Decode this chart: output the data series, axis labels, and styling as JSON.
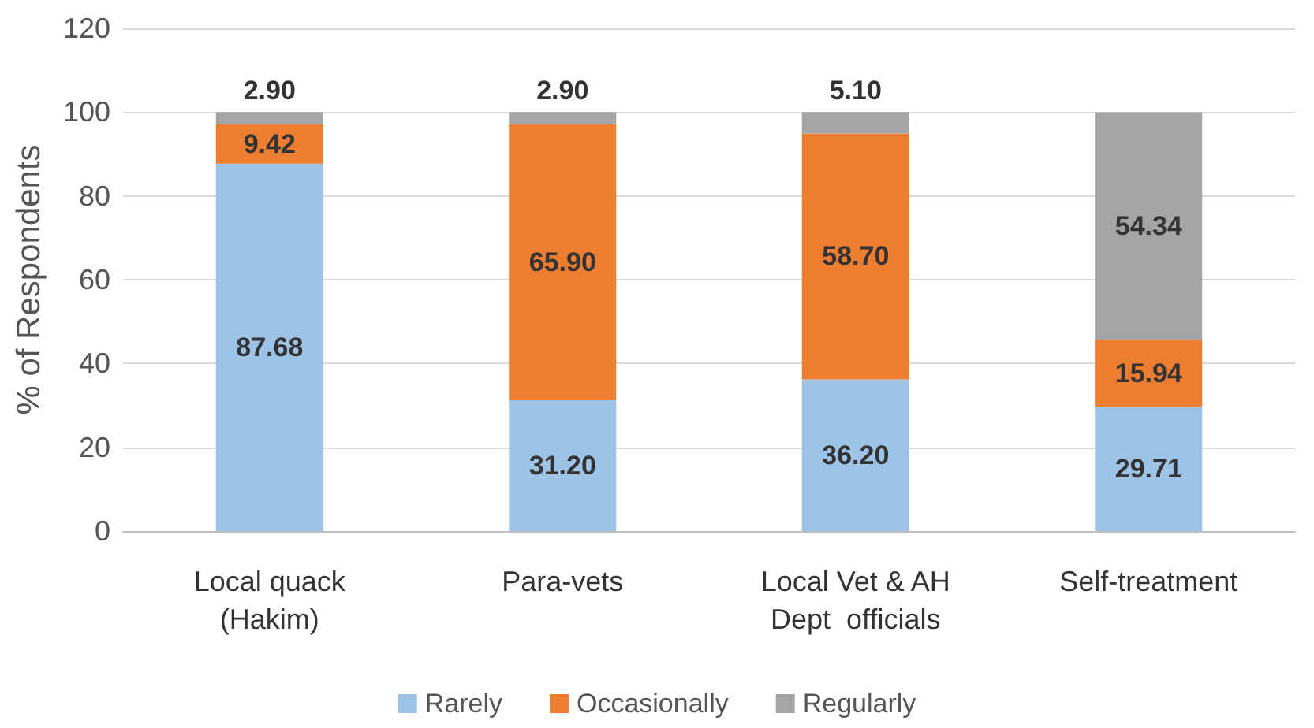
{
  "chart_data": {
    "type": "bar",
    "stacked": true,
    "ylabel": "% of Respondents",
    "categories": [
      "Local quack\n(Hakim)",
      "Para-vets",
      "Local Vet & AH\nDept  officials",
      "Self-treatment"
    ],
    "series": [
      {
        "name": "Rarely",
        "color": "#9dc3e6",
        "values": [
          87.68,
          31.2,
          36.2,
          29.71
        ],
        "value_labels": [
          "87.68",
          "31.20",
          "36.20",
          "29.71"
        ]
      },
      {
        "name": "Occasionally",
        "color": "#ed7d31",
        "values": [
          9.42,
          65.9,
          58.7,
          15.94
        ],
        "value_labels": [
          "9.42",
          "65.90",
          "58.70",
          "15.94"
        ]
      },
      {
        "name": "Regularly",
        "color": "#a5a5a5",
        "values": [
          2.9,
          2.9,
          5.1,
          54.34
        ],
        "value_labels": [
          "2.90",
          "2.90",
          "5.10",
          "54.34"
        ]
      }
    ],
    "ylim": [
      0,
      120
    ],
    "yticks": [
      0,
      20,
      40,
      60,
      80,
      100,
      120
    ],
    "grid": "y",
    "legend": "bottom"
  }
}
